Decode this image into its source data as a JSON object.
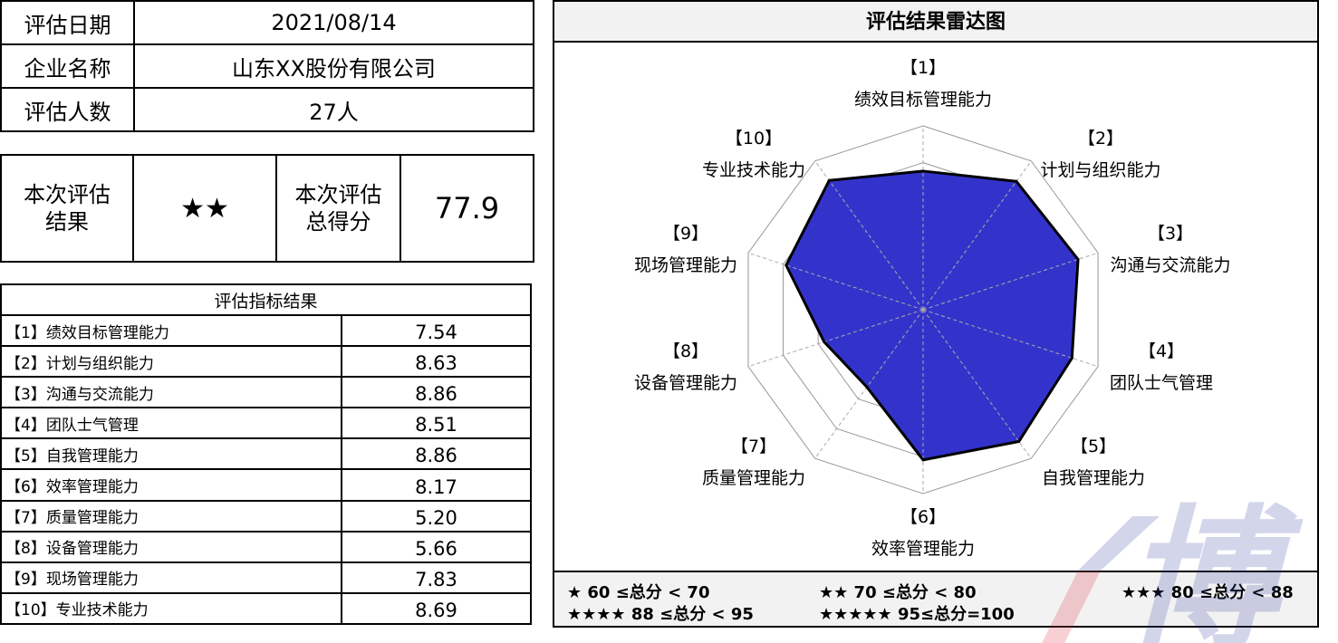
{
  "info": {
    "rows": [
      {
        "label": "评估日期",
        "value": "2021/08/14"
      },
      {
        "label": "企业名称",
        "value": "山东XX股份有限公司"
      },
      {
        "label": "评估人数",
        "value": "27人"
      }
    ]
  },
  "result": {
    "rating_label": "本次评估结果",
    "rating": "★★",
    "score_label": "本次评估总得分",
    "score": "77.9"
  },
  "indicators": {
    "header": "评估指标结果",
    "rows": [
      {
        "name": "【1】绩效目标管理能力",
        "value": "7.54"
      },
      {
        "name": "【2】计划与组织能力",
        "value": "8.63"
      },
      {
        "name": "【3】沟通与交流能力",
        "value": "8.86"
      },
      {
        "name": "【4】团队士气管理",
        "value": "8.51"
      },
      {
        "name": "【5】自我管理能力",
        "value": "8.86"
      },
      {
        "name": "【6】效率管理能力",
        "value": "8.17"
      },
      {
        "name": "【7】质量管理能力",
        "value": "5.20"
      },
      {
        "name": "【8】设备管理能力",
        "value": "5.66"
      },
      {
        "name": "【9】现场管理能力",
        "value": "7.83"
      },
      {
        "name": "【10】专业技术能力",
        "value": "8.69"
      }
    ]
  },
  "chart_data": {
    "type": "radar",
    "title": "评估结果雷达图",
    "range": [
      0,
      10
    ],
    "rings": 5,
    "fill_color": "#3333cc",
    "line_color": "#000000",
    "categories": [
      {
        "num": "【1】",
        "name": "绩效目标管理能力"
      },
      {
        "num": "【2】",
        "name": "计划与组织能力"
      },
      {
        "num": "【3】",
        "name": "沟通与交流能力"
      },
      {
        "num": "【4】",
        "name": "团队士气管理"
      },
      {
        "num": "【5】",
        "name": "自我管理能力"
      },
      {
        "num": "【6】",
        "name": "效率管理能力"
      },
      {
        "num": "【7】",
        "name": "质量管理能力"
      },
      {
        "num": "【8】",
        "name": "设备管理能力"
      },
      {
        "num": "【9】",
        "name": "现场管理能力"
      },
      {
        "num": "【10】",
        "name": "专业技术能力"
      }
    ],
    "values": [
      7.54,
      8.63,
      8.86,
      8.51,
      8.86,
      8.17,
      5.2,
      5.66,
      7.83,
      8.69
    ]
  },
  "legend": [
    "★  60 ≤总分 < 70",
    "★★  70 ≤总分 < 80",
    "★★★  80 ≤总分 < 88",
    "★★★★   88 ≤总分 < 95",
    "★★★★★  95≤总分=100"
  ],
  "watermark": "博"
}
